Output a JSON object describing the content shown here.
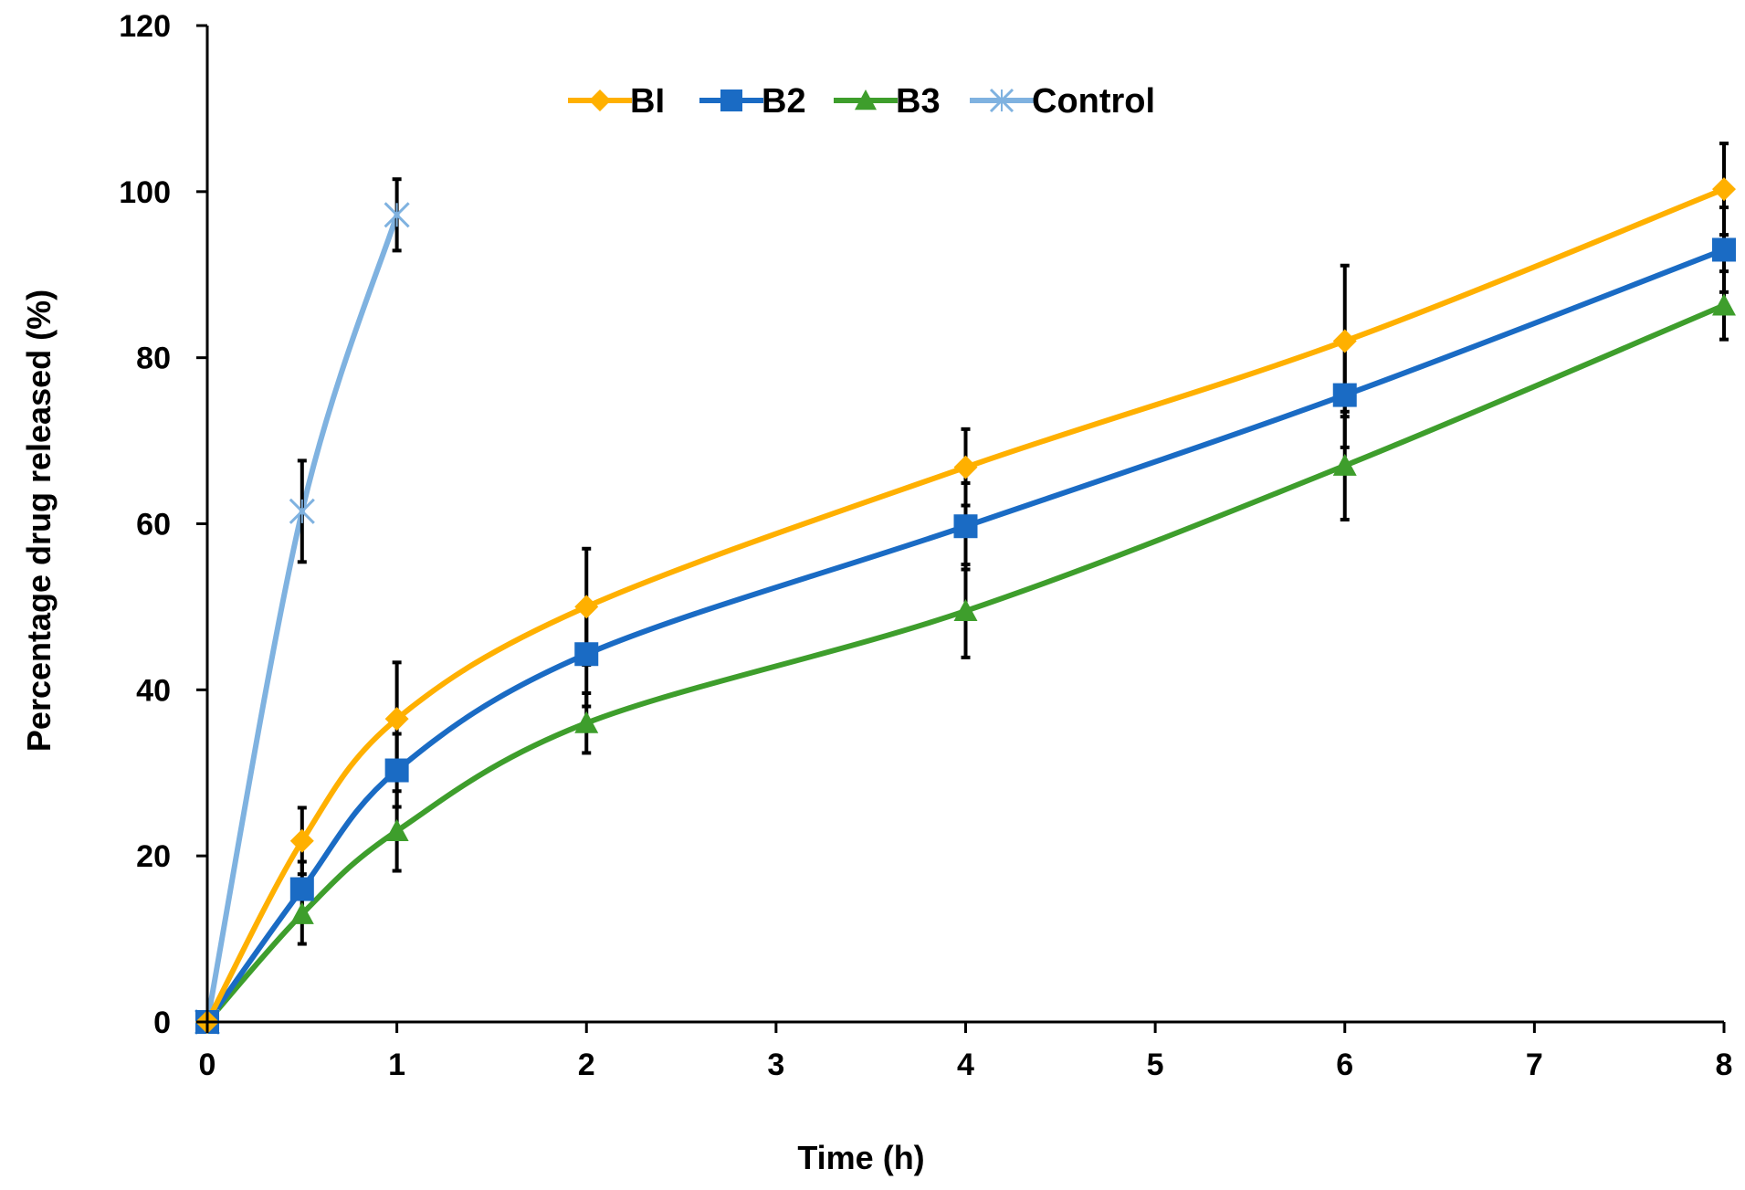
{
  "chart_data": {
    "type": "line",
    "title": "",
    "xlabel": "Time (h)",
    "ylabel": "Percentage drug released (%)",
    "xlim": [
      0,
      8
    ],
    "ylim": [
      0,
      120
    ],
    "xticks": [
      0,
      1,
      2,
      3,
      4,
      5,
      6,
      7,
      8
    ],
    "yticks": [
      0,
      20,
      40,
      60,
      80,
      100,
      120
    ],
    "grid": false,
    "legend_position": "top",
    "series": [
      {
        "name": "BI",
        "color": "#FFB000",
        "marker": "diamond",
        "x": [
          0,
          0.5,
          1,
          2,
          4,
          6,
          8
        ],
        "y": [
          0,
          21.8,
          36.5,
          50,
          66.8,
          82,
          100.3
        ],
        "error": [
          0,
          4,
          6.8,
          7,
          4.6,
          9.1,
          5.5
        ]
      },
      {
        "name": "B2",
        "color": "#1A6BC4",
        "marker": "square",
        "x": [
          0,
          0.5,
          1,
          2,
          4,
          6,
          8
        ],
        "y": [
          0,
          16,
          30.3,
          44.3,
          59.7,
          75.5,
          93
        ],
        "error": [
          0,
          3.3,
          4.4,
          6.3,
          5.2,
          6.3,
          5.1
        ]
      },
      {
        "name": "B3",
        "color": "#3E9E2C",
        "marker": "triangle",
        "x": [
          0,
          0.5,
          1,
          2,
          4,
          6,
          8
        ],
        "y": [
          0,
          13,
          23,
          36,
          49.5,
          67,
          86.3
        ],
        "error": [
          0,
          3.6,
          4.8,
          3.6,
          5.6,
          6.5,
          4.1
        ]
      },
      {
        "name": "Control",
        "color": "#7FB2E0",
        "marker": "cross",
        "x": [
          0,
          0.5,
          1
        ],
        "y": [
          0,
          61.5,
          97.2
        ],
        "error": [
          0,
          6.1,
          4.3
        ]
      }
    ]
  }
}
